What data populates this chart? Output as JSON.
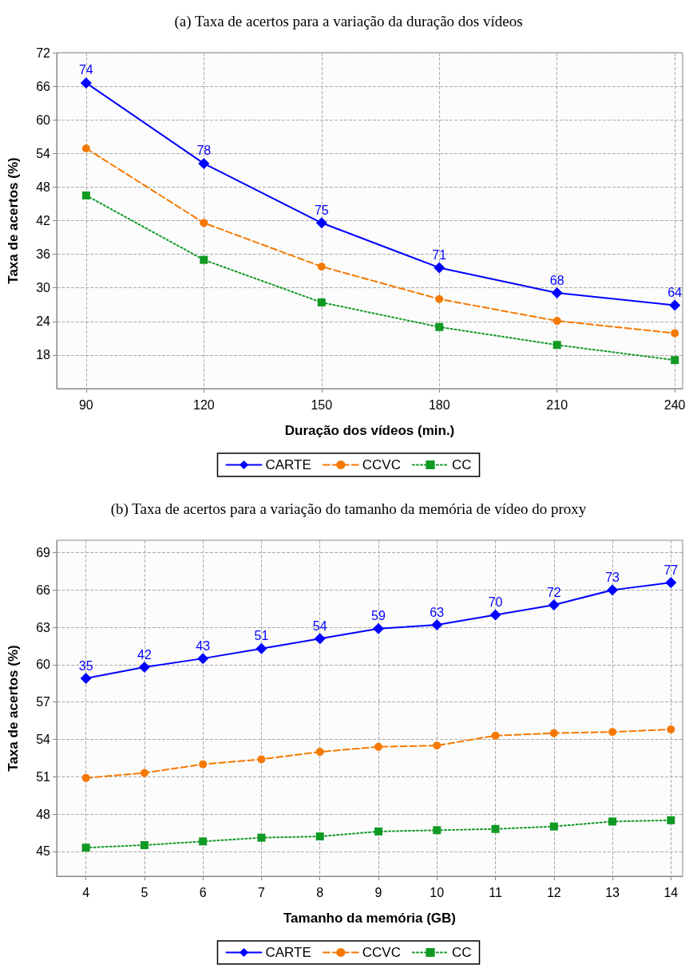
{
  "chart_data": [
    {
      "type": "line",
      "title": "(a) Taxa de acertos para a variação da duração dos vídeos",
      "xlabel": "Duração dos vídeos (min.)",
      "ylabel": "Taxa de acertos (%)",
      "x": [
        90,
        120,
        150,
        180,
        210,
        240
      ],
      "xlim": [
        82.5,
        242
      ],
      "xticks": [
        90,
        120,
        150,
        180,
        210,
        240
      ],
      "ylim": [
        12,
        72
      ],
      "yticks": [
        18,
        24,
        30,
        36,
        42,
        48,
        54,
        60,
        66,
        72
      ],
      "grid": true,
      "legend": "bottom",
      "series": [
        {
          "name": "CARTE",
          "color": "#0000ff",
          "marker": "diamond",
          "line_style": "solid",
          "values": [
            66.6,
            52.2,
            41.6,
            33.6,
            29.1,
            26.9
          ]
        },
        {
          "name": "CCVC",
          "color": "#f57900",
          "marker": "circle",
          "line_style": "dashed",
          "values": [
            54.9,
            41.6,
            33.8,
            28.0,
            24.1,
            21.9
          ]
        },
        {
          "name": "CC",
          "color": "#109a24",
          "marker": "square",
          "line_style": "dotted",
          "values": [
            46.5,
            35.0,
            27.4,
            23.0,
            19.8,
            17.1
          ]
        }
      ],
      "annotations": [
        {
          "text": "74",
          "x": 90,
          "y": 66.6
        },
        {
          "text": "78",
          "x": 120,
          "y": 52.2
        },
        {
          "text": "75",
          "x": 150,
          "y": 41.6
        },
        {
          "text": "71",
          "x": 180,
          "y": 33.6
        },
        {
          "text": "68",
          "x": 210,
          "y": 29.1
        },
        {
          "text": "64",
          "x": 240,
          "y": 26.9
        }
      ]
    },
    {
      "type": "line",
      "title": "(b) Taxa de acertos para a variação do tamanho da memória de vídeo do proxy",
      "xlabel": "Tamanho da memória (GB)",
      "ylabel": "Taxa de acertos (%)",
      "x": [
        4,
        5,
        6,
        7,
        8,
        9,
        10,
        11,
        12,
        13,
        14
      ],
      "xlim": [
        3.5,
        14.2
      ],
      "xticks": [
        4,
        5,
        6,
        7,
        8,
        9,
        10,
        11,
        12,
        13,
        14
      ],
      "ylim": [
        43,
        70
      ],
      "yticks": [
        45,
        48,
        51,
        54,
        57,
        60,
        63,
        66,
        69
      ],
      "grid": true,
      "legend": "bottom",
      "series": [
        {
          "name": "CARTE",
          "color": "#0000ff",
          "marker": "diamond",
          "line_style": "solid",
          "values": [
            58.9,
            59.8,
            60.5,
            61.3,
            62.1,
            62.9,
            63.2,
            64.0,
            64.8,
            66.0,
            66.6
          ]
        },
        {
          "name": "CCVC",
          "color": "#f57900",
          "marker": "circle",
          "line_style": "dashed",
          "values": [
            50.9,
            51.3,
            52.0,
            52.4,
            53.0,
            53.4,
            53.5,
            54.3,
            54.5,
            54.6,
            54.8
          ]
        },
        {
          "name": "CC",
          "color": "#109a24",
          "marker": "square",
          "line_style": "dotted",
          "values": [
            45.3,
            45.5,
            45.8,
            46.1,
            46.2,
            46.6,
            46.7,
            46.8,
            47.0,
            47.4,
            47.5
          ]
        }
      ],
      "annotations": [
        {
          "text": "35",
          "x": 4,
          "y": 58.9
        },
        {
          "text": "42",
          "x": 5,
          "y": 59.8
        },
        {
          "text": "43",
          "x": 6,
          "y": 60.5
        },
        {
          "text": "51",
          "x": 7,
          "y": 61.3
        },
        {
          "text": "54",
          "x": 8,
          "y": 62.1
        },
        {
          "text": "59",
          "x": 9,
          "y": 62.9
        },
        {
          "text": "63",
          "x": 10,
          "y": 63.2
        },
        {
          "text": "70",
          "x": 11,
          "y": 64.0
        },
        {
          "text": "72",
          "x": 12,
          "y": 64.8
        },
        {
          "text": "73",
          "x": 13,
          "y": 66.0
        },
        {
          "text": "77",
          "x": 14,
          "y": 66.6
        }
      ]
    }
  ]
}
